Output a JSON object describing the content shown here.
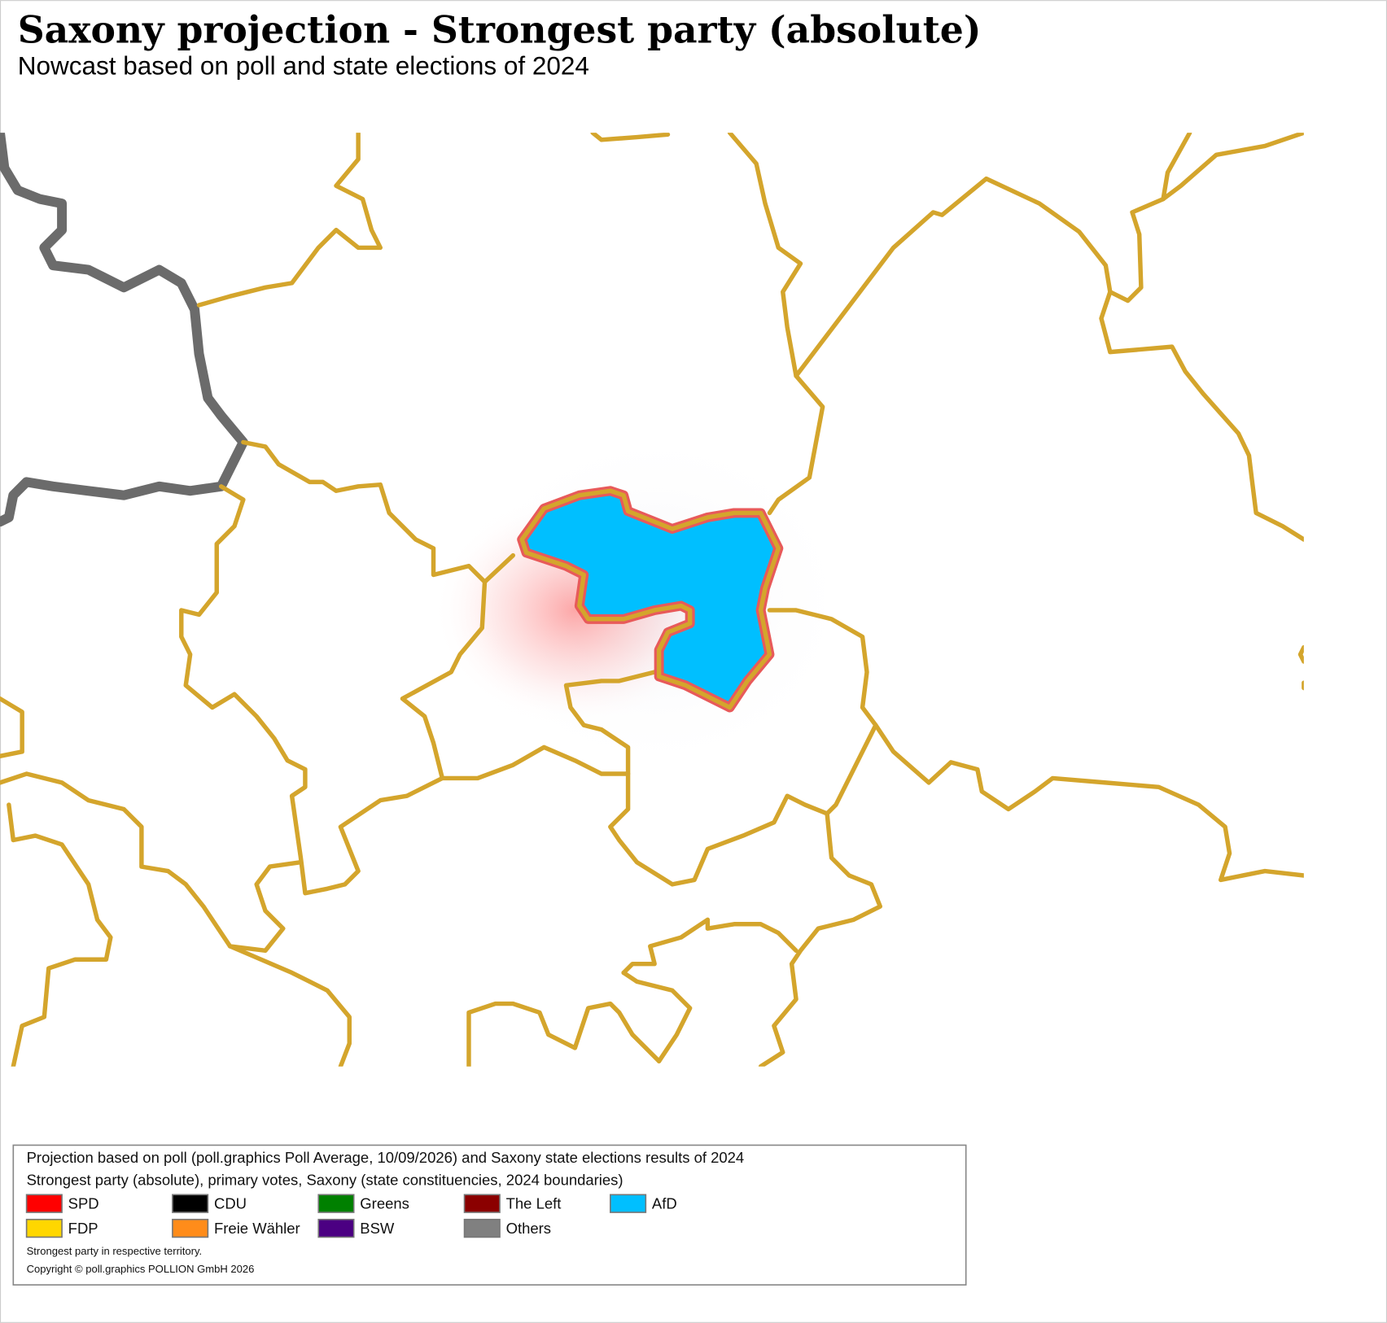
{
  "header": {
    "title": "Saxony projection - Strongest party (absolute)",
    "subtitle": "Nowcast based on poll and state elections of 2024"
  },
  "legend": {
    "lines": [
      "Projection based on poll (poll.graphics Poll Average, 10/09/2026) and Saxony state elections results of 2024",
      "Strongest party (absolute), primary votes, Saxony (state constituencies, 2024 boundaries)"
    ],
    "items": [
      {
        "name": "SPD",
        "color": "#ff0000"
      },
      {
        "name": "CDU",
        "color": "#000000"
      },
      {
        "name": "Greens",
        "color": "#008000"
      },
      {
        "name": "The Left",
        "color": "#8b0000"
      },
      {
        "name": "AfD",
        "color": "#00bfff"
      },
      {
        "name": "FDP",
        "color": "#ffd700"
      },
      {
        "name": "Freie Wähler",
        "color": "#ff8c1a"
      },
      {
        "name": "BSW",
        "color": "#4b0082"
      },
      {
        "name": "Others",
        "color": "#808080"
      }
    ],
    "notes": [
      "Strongest party in respective territory.",
      "Copyright © poll.graphics POLLION GmbH 2026"
    ]
  }
}
